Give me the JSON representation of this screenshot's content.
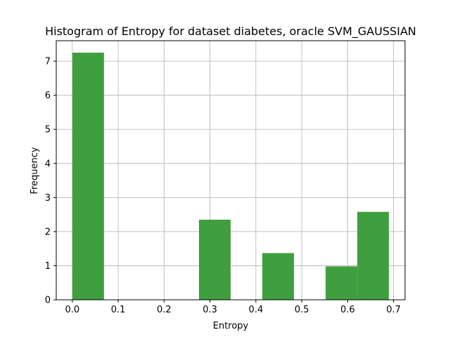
{
  "chart_data": {
    "type": "bar",
    "title": "Histogram of Entropy for dataset diabetes, oracle SVM_GAUSSIAN",
    "xlabel": "Entropy",
    "ylabel": "Frequency",
    "xlim": [
      -0.035,
      0.725
    ],
    "ylim": [
      0,
      7.6
    ],
    "grid": true,
    "bar_color": "#3f9f3f",
    "x_ticks": [
      {
        "value": 0.0,
        "label": "0.0"
      },
      {
        "value": 0.1,
        "label": "0.1"
      },
      {
        "value": 0.2,
        "label": "0.2"
      },
      {
        "value": 0.3,
        "label": "0.3"
      },
      {
        "value": 0.4,
        "label": "0.4"
      },
      {
        "value": 0.5,
        "label": "0.5"
      },
      {
        "value": 0.6,
        "label": "0.6"
      },
      {
        "value": 0.7,
        "label": "0.7"
      }
    ],
    "y_ticks": [
      {
        "value": 0,
        "label": "0"
      },
      {
        "value": 1,
        "label": "1"
      },
      {
        "value": 2,
        "label": "2"
      },
      {
        "value": 3,
        "label": "3"
      },
      {
        "value": 4,
        "label": "4"
      },
      {
        "value": 5,
        "label": "5"
      },
      {
        "value": 6,
        "label": "6"
      },
      {
        "value": 7,
        "label": "7"
      }
    ],
    "bins": [
      {
        "x0": 0.0,
        "x1": 0.069,
        "value": 7.25
      },
      {
        "x0": 0.069,
        "x1": 0.138,
        "value": 0
      },
      {
        "x0": 0.138,
        "x1": 0.207,
        "value": 0
      },
      {
        "x0": 0.207,
        "x1": 0.276,
        "value": 0
      },
      {
        "x0": 0.276,
        "x1": 0.345,
        "value": 2.35
      },
      {
        "x0": 0.345,
        "x1": 0.414,
        "value": 0
      },
      {
        "x0": 0.414,
        "x1": 0.483,
        "value": 1.37
      },
      {
        "x0": 0.483,
        "x1": 0.552,
        "value": 0
      },
      {
        "x0": 0.552,
        "x1": 0.621,
        "value": 0.98
      },
      {
        "x0": 0.621,
        "x1": 0.69,
        "value": 2.58
      }
    ]
  }
}
